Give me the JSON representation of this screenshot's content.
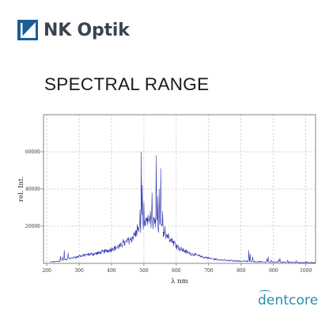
{
  "header": {
    "logo_text": "NK Optik",
    "logo_icon": "nk-optik-logo-icon",
    "brand_color": "#1a5d96"
  },
  "heading": "SPECTRAL RANGE",
  "footer": {
    "brand_text": "dentcore",
    "brand_color": "#2c8bb1"
  },
  "chart_data": {
    "type": "line",
    "title": "",
    "xlabel": "λ nm",
    "ylabel": "rel. Int.",
    "xlim": [
      190,
      1030
    ],
    "ylim": [
      0,
      80000
    ],
    "x_ticks": [
      200,
      300,
      400,
      500,
      600,
      700,
      800,
      900,
      1000
    ],
    "x_tick_labels": [
      "200",
      "300",
      "400",
      "500",
      "600",
      "700",
      "800",
      "900",
      "1000"
    ],
    "y_ticks": [
      20000,
      40000,
      60000
    ],
    "y_tick_labels": [
      "20000",
      "40000",
      "60000"
    ],
    "grid": true,
    "grid_style": "dashed",
    "legend": "none",
    "line_color": "#1c24a8",
    "baseline": [
      [
        200,
        500
      ],
      [
        240,
        1200
      ],
      [
        280,
        3000
      ],
      [
        320,
        4500
      ],
      [
        360,
        5500
      ],
      [
        400,
        7500
      ],
      [
        430,
        9500
      ],
      [
        460,
        13000
      ],
      [
        480,
        17000
      ],
      [
        500,
        20000
      ],
      [
        515,
        22000
      ],
      [
        530,
        21500
      ],
      [
        550,
        19000
      ],
      [
        570,
        15500
      ],
      [
        590,
        11500
      ],
      [
        610,
        8000
      ],
      [
        640,
        5500
      ],
      [
        680,
        3500
      ],
      [
        720,
        2200
      ],
      [
        760,
        1500
      ],
      [
        800,
        1200
      ],
      [
        850,
        900
      ],
      [
        900,
        700
      ],
      [
        950,
        600
      ],
      [
        1000,
        400
      ],
      [
        1030,
        300
      ]
    ],
    "peaks": [
      [
        242,
        4000
      ],
      [
        248,
        3500
      ],
      [
        254,
        7000
      ],
      [
        266,
        5500
      ],
      [
        285,
        3500
      ],
      [
        301,
        4500
      ],
      [
        313,
        3000
      ],
      [
        334,
        2500
      ],
      [
        366,
        3500
      ],
      [
        405,
        8000
      ],
      [
        415,
        4500
      ],
      [
        436,
        13000
      ],
      [
        446,
        8000
      ],
      [
        452,
        13000
      ],
      [
        462,
        9500
      ],
      [
        468,
        14000
      ],
      [
        472,
        13000
      ],
      [
        480,
        21000
      ],
      [
        484,
        17000
      ],
      [
        488,
        29000
      ],
      [
        492,
        60000
      ],
      [
        495,
        42000
      ],
      [
        500,
        33000
      ],
      [
        504,
        20000
      ],
      [
        510,
        19000
      ],
      [
        513,
        26000
      ],
      [
        520,
        28000
      ],
      [
        525,
        38000
      ],
      [
        530,
        25000
      ],
      [
        534,
        22000
      ],
      [
        538,
        58000
      ],
      [
        542,
        36000
      ],
      [
        547,
        40000
      ],
      [
        552,
        51000
      ],
      [
        558,
        28000
      ],
      [
        565,
        20000
      ],
      [
        572,
        14000
      ],
      [
        582,
        12000
      ],
      [
        590,
        10000
      ],
      [
        604,
        9000
      ],
      [
        618,
        6000
      ],
      [
        640,
        4500
      ],
      [
        656,
        4000
      ],
      [
        680,
        3000
      ],
      [
        693,
        3500
      ],
      [
        712,
        2500
      ],
      [
        770,
        1800
      ],
      [
        810,
        1500
      ],
      [
        824,
        7000
      ],
      [
        828,
        5000
      ],
      [
        836,
        3500
      ],
      [
        880,
        2500
      ],
      [
        884,
        3500
      ],
      [
        893,
        1800
      ],
      [
        916,
        2000
      ],
      [
        920,
        2800
      ],
      [
        944,
        1800
      ],
      [
        970,
        1500
      ],
      [
        1000,
        1200
      ]
    ]
  }
}
